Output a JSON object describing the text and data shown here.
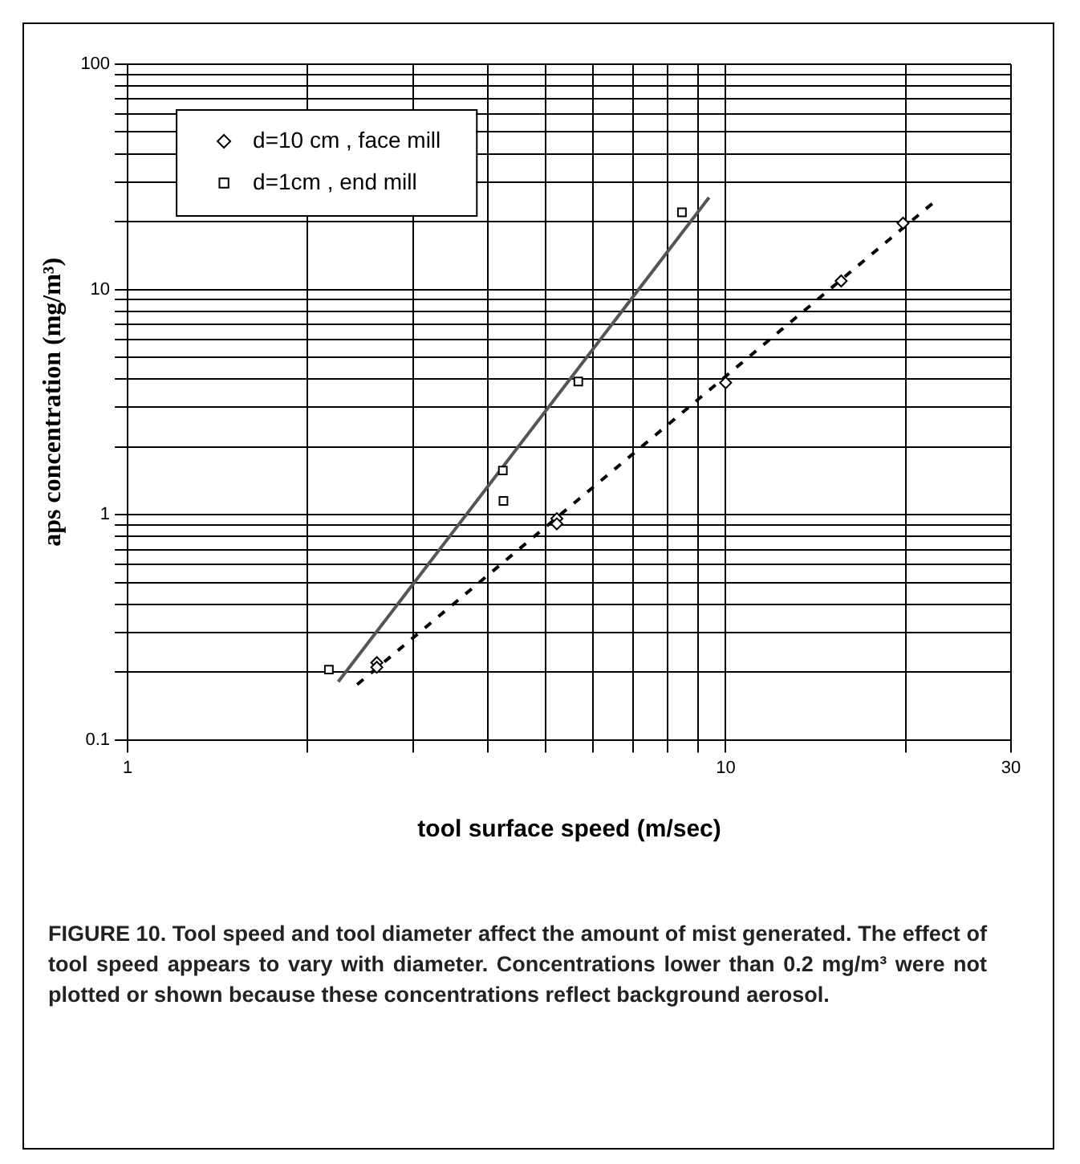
{
  "chart_data": {
    "type": "scatter",
    "xlabel": "tool surface speed (m/sec)",
    "ylabel": "aps concentration (mg/m³)",
    "log": "xy",
    "grid": true,
    "legend": "top left",
    "xlim": [
      1,
      30
    ],
    "xticks": [
      1,
      {
        "value": 2,
        "label": null
      },
      {
        "value": 3,
        "label": null
      },
      {
        "value": 4,
        "label": null
      },
      {
        "value": 5,
        "label": null
      },
      {
        "value": 6,
        "label": null
      },
      {
        "value": 7,
        "label": null
      },
      {
        "value": 8,
        "label": null
      },
      {
        "value": 9,
        "label": null
      },
      10,
      {
        "value": 20,
        "label": null
      },
      30
    ],
    "ylim": [
      0.1,
      100
    ],
    "yticks": [
      0.1,
      {
        "value": 0.2,
        "label": null
      },
      {
        "value": 0.3,
        "label": null
      },
      {
        "value": 0.4,
        "label": null
      },
      {
        "value": 0.5,
        "label": null
      },
      {
        "value": 0.6,
        "label": null
      },
      {
        "value": 0.7,
        "label": null
      },
      {
        "value": 0.8,
        "label": null
      },
      {
        "value": 0.9,
        "label": null
      },
      1,
      {
        "value": 2,
        "label": null
      },
      {
        "value": 3,
        "label": null
      },
      {
        "value": 4,
        "label": null
      },
      {
        "value": 5,
        "label": null
      },
      {
        "value": 6,
        "label": null
      },
      {
        "value": 7,
        "label": null
      },
      {
        "value": 8,
        "label": null
      },
      {
        "value": 9,
        "label": null
      },
      10,
      {
        "value": 20,
        "label": null
      },
      {
        "value": 30,
        "label": null
      },
      {
        "value": 40,
        "label": null
      },
      {
        "value": 50,
        "label": null
      },
      {
        "value": 60,
        "label": null
      },
      {
        "value": 70,
        "label": null
      },
      {
        "value": 80,
        "label": null
      },
      {
        "value": 90,
        "label": null
      },
      100
    ],
    "series": [
      {
        "name": "d=10 cm , face mill",
        "type": "scatter",
        "marker": "diamond",
        "color": "#000000",
        "x": [
          2.61,
          2.61,
          5.22,
          5.22,
          10,
          15.6,
          19.8
        ],
        "values": [
          0.22,
          0.21,
          0.96,
          0.91,
          3.85,
          10.9,
          19.7
        ]
      },
      {
        "name": "d=1cm , end mill",
        "type": "scatter",
        "marker": "square",
        "color": "#000000",
        "x": [
          2.17,
          4.24,
          4.25,
          5.67,
          8.45
        ],
        "values": [
          0.205,
          1.57,
          1.15,
          3.9,
          22
        ]
      },
      {
        "type": "line",
        "marker": "none",
        "line_style": "dashed",
        "color": "#000000",
        "x": [
          2.42,
          22.5
        ],
        "values": [
          0.176,
          24.9
        ]
      },
      {
        "type": "line",
        "marker": "none",
        "line_style": "solid",
        "color": "#555555",
        "x": [
          2.25,
          9.38
        ],
        "values": [
          0.181,
          25.6
        ]
      }
    ],
    "annotations": [
      "FIGURE 10. Tool speed and tool diameter affect the amount of mist generated. The effect of tool speed appears to vary with diameter. Concentrations lower than 0.2 mg/m³ were not plotted or shown because these concentrations reflect background aerosol."
    ]
  }
}
